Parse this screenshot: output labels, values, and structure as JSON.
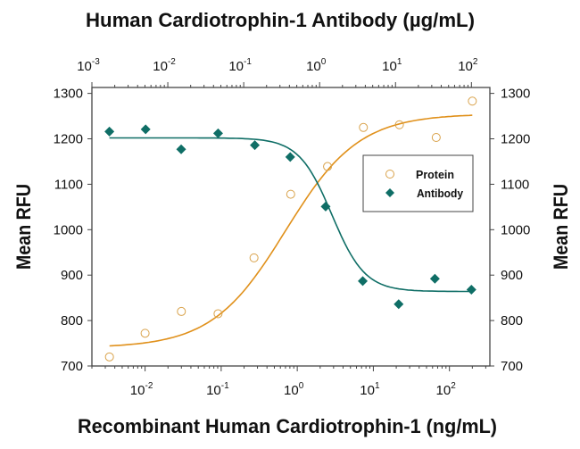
{
  "chart_data": {
    "type": "scatter",
    "title": "Human Cardiotrophin-1 Antibody (µg/mL)",
    "xlabel": "Recombinant Human Cardiotrophin-1 (ng/mL)",
    "x2label": "Human Cardiotrophin-1 Antibody (µg/mL)",
    "ylabel": "Mean RFU",
    "y2label": "Mean RFU",
    "xscale": "log",
    "xlim": [
      0.002,
      340
    ],
    "x2lim": [
      0.001,
      175
    ],
    "ylim": [
      700,
      1313
    ],
    "yticks": [
      700,
      800,
      900,
      1000,
      1100,
      1200,
      1300
    ],
    "xticks_exp": [
      -2,
      -1,
      0,
      1,
      2
    ],
    "x2ticks_exp": [
      -3,
      -2,
      -1,
      0,
      1,
      2
    ],
    "grid": false,
    "legend_position": "right-middle",
    "series": [
      {
        "name": "Protein",
        "axis": "bottom",
        "marker": "open-circle",
        "color": "#E0901A",
        "x": [
          0.0034,
          0.01,
          0.03,
          0.091,
          0.27,
          0.82,
          2.5,
          7.4,
          22,
          67,
          200
        ],
        "y": [
          720,
          772,
          820,
          815,
          938,
          1078,
          1139,
          1225,
          1231,
          1203,
          1283
        ],
        "fit": {
          "bottom": 740,
          "top": 1255,
          "ec50": 0.7,
          "hill": 0.9
        }
      },
      {
        "name": "Antibody",
        "axis": "top",
        "marker": "filled-diamond",
        "color": "#0F6E66",
        "x": [
          0.0017,
          0.0051,
          0.015,
          0.046,
          0.14,
          0.41,
          1.2,
          3.7,
          11,
          33,
          100
        ],
        "y": [
          1216,
          1221,
          1177,
          1212,
          1186,
          1160,
          1051,
          887,
          836,
          892,
          868
        ],
        "fit": {
          "bottom": 864,
          "top": 1202,
          "ec50": 1.45,
          "hill": 2.0
        }
      }
    ]
  }
}
